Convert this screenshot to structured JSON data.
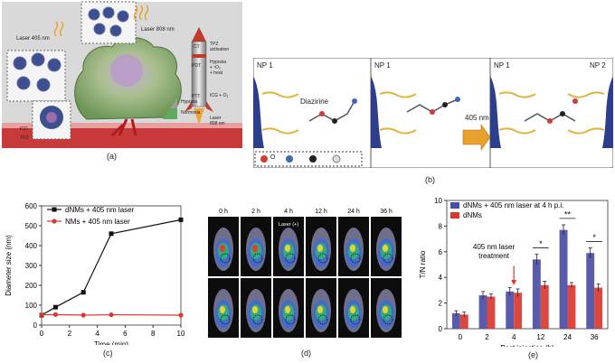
{
  "panels": {
    "a": {
      "caption": "(a)",
      "labels": {
        "laser405": "Laser 405 nm",
        "laser808": "Laser 808 nm",
        "laser808b": "Laser\n808 nm",
        "ct": "CT",
        "pdt": "PDT",
        "ptt": "PTT",
        "tpz_activation": "TPZ\nactivation",
        "hypoxia_heat": "Hypoxia\n+ ¹O₂\n+ heat",
        "icg_o2": "ICG + O₂",
        "hypoxia": "Hypoxia",
        "normoxia": "Normoxia",
        "icg": "ICG",
        "tpz": "TPZ"
      }
    },
    "b": {
      "caption": "(b)",
      "np1_a": "NP 1",
      "np1_b": "NP 1",
      "np1_c": "NP 1",
      "np2": "NP 2",
      "diazirine": "Diazirine",
      "arrow": "405 nm",
      "legend_o": "O"
    },
    "c": {
      "caption": "(c)",
      "chart_data": {
        "type": "line",
        "xlabel": "Time (min)",
        "ylabel": "Diameter size (nm)",
        "xlim": [
          0,
          10
        ],
        "ylim": [
          0,
          600
        ],
        "xticks": [
          0,
          2,
          4,
          6,
          8,
          10
        ],
        "yticks": [
          0,
          100,
          200,
          300,
          400,
          500,
          600
        ],
        "legend_position": "top-left",
        "series": [
          {
            "name": "dNMs + 405 nm laser",
            "color": "#111111",
            "marker": "square",
            "x": [
              0,
              1,
              3,
              5,
              10
            ],
            "y": [
              50,
              90,
              165,
              460,
              530
            ]
          },
          {
            "name": "NMs + 405 nm laser",
            "color": "#d9382f",
            "marker": "circle",
            "x": [
              0,
              1,
              3,
              5,
              10
            ],
            "y": [
              52,
              53,
              50,
              52,
              50
            ]
          }
        ]
      }
    },
    "d": {
      "caption": "(d)",
      "timepoints": [
        "0 h",
        "2 h",
        "4 h",
        "12 h",
        "24 h",
        "36 h"
      ],
      "laser_tag": "Laser (+)"
    },
    "e": {
      "caption": "(e)",
      "annotation": "405 nm laser\ntreatment",
      "chart_data": {
        "type": "bar",
        "xlabel": "Post injection (h)",
        "ylabel": "T/N ratio",
        "categories": [
          "0",
          "2",
          "4",
          "12",
          "24",
          "36"
        ],
        "ylim": [
          0,
          10
        ],
        "yticks": [
          0,
          2,
          4,
          6,
          8,
          10
        ],
        "legend_position": "top",
        "series": [
          {
            "name": "dNMs + 405 nm laser at 4 h p.i.",
            "color": "#4b4ea6",
            "values": [
              1.2,
              2.6,
              2.9,
              5.4,
              7.7,
              5.9
            ],
            "errors": [
              0.2,
              0.3,
              0.3,
              0.4,
              0.4,
              0.4
            ]
          },
          {
            "name": "dNMs",
            "color": "#d9382f",
            "values": [
              1.1,
              2.5,
              2.8,
              3.4,
              3.4,
              3.2
            ],
            "errors": [
              0.2,
              0.2,
              0.3,
              0.3,
              0.2,
              0.3
            ]
          }
        ],
        "significance": [
          {
            "category": "12",
            "mark": "*"
          },
          {
            "category": "24",
            "mark": "**"
          },
          {
            "category": "36",
            "mark": "*"
          }
        ]
      }
    }
  }
}
